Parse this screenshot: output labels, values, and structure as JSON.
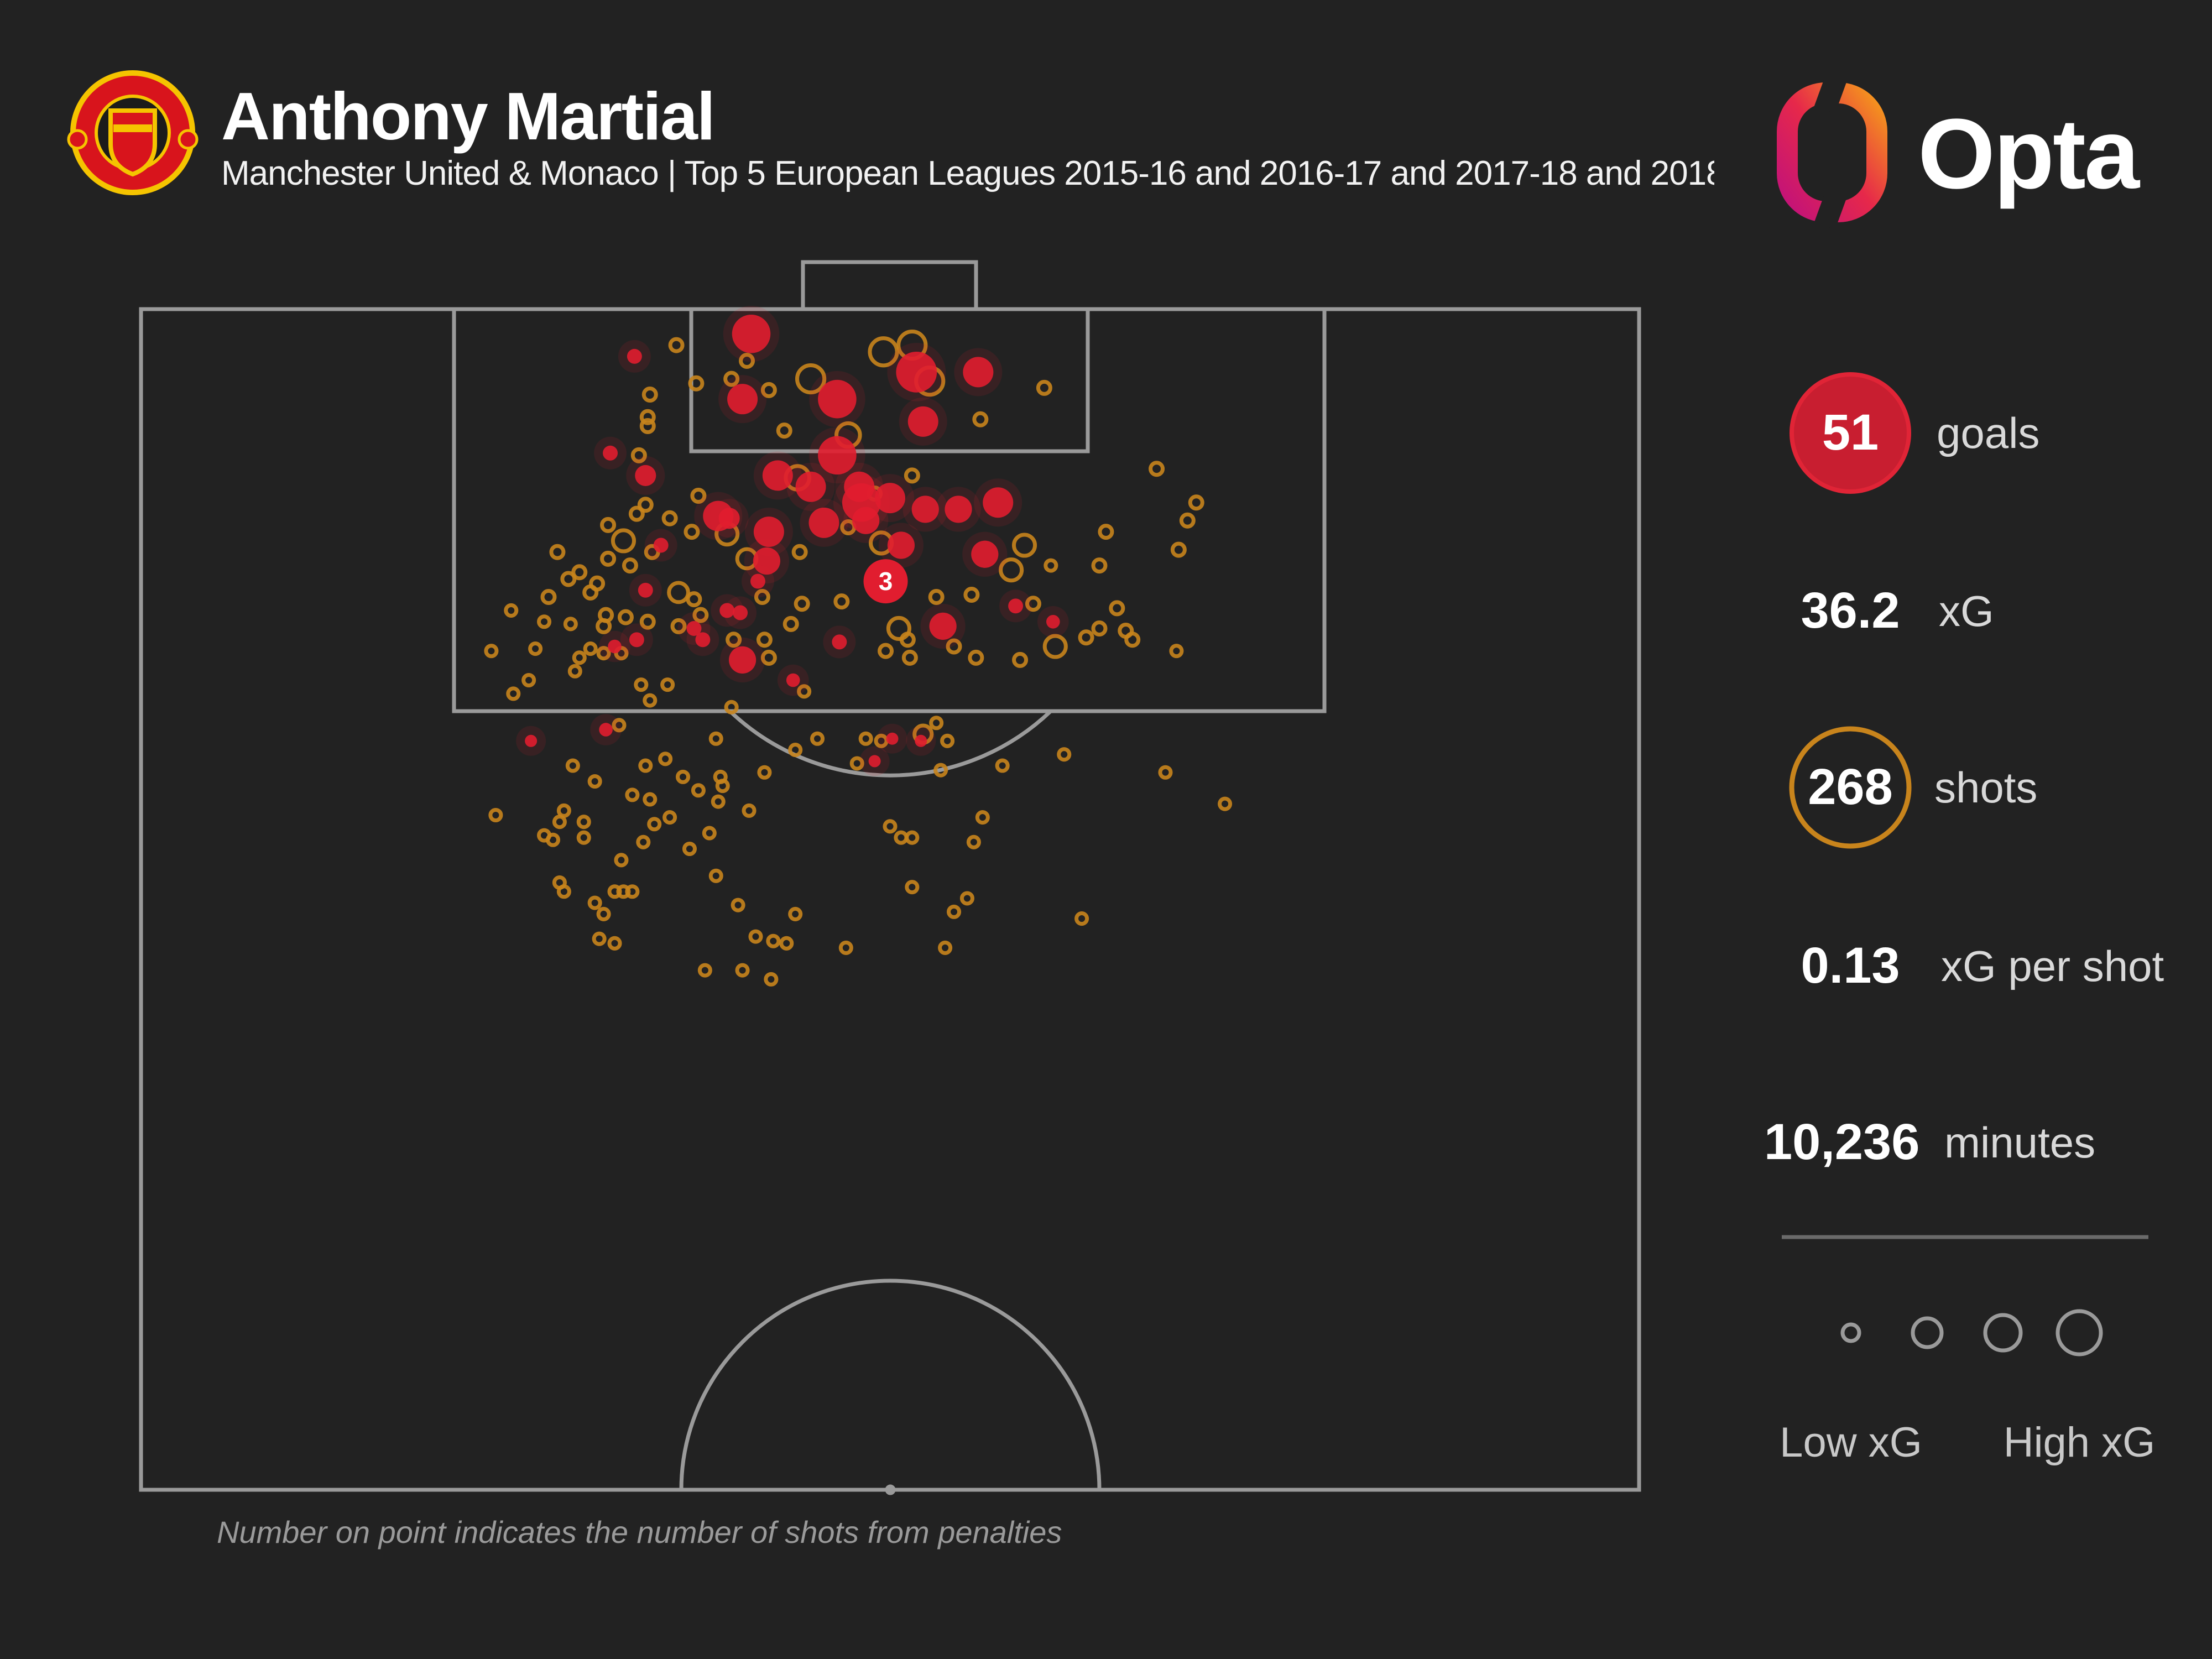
{
  "header": {
    "title": "Anthony Martial",
    "subtitle": "Manchester United & Monaco | Top 5 European Leagues 2015-16 and 2016-17 and 2017-18 and 2018",
    "club_crest": "manchester-united-crest",
    "brand_logo_text": "Opta"
  },
  "stats": {
    "goals_value": "51",
    "goals_label": "goals",
    "xg_value": "36.2",
    "xg_label": "xG",
    "shots_value": "268",
    "shots_label": "shots",
    "xg_per_shot_value": "0.13",
    "xg_per_shot_label": "xG per shot",
    "minutes_value": "10,236",
    "minutes_label": "minutes"
  },
  "legend": {
    "low_label": "Low xG",
    "high_label": "High xG",
    "sizes_xg": [
      0.03,
      0.15,
      0.25,
      0.4
    ]
  },
  "footnote": "Number on point indicates the number of shots from penalties",
  "colors": {
    "background": "#222222",
    "goal": "#e11d2f",
    "shot": "#c8841c",
    "pitch_lines": "#9a9a9a",
    "text": "#ffffff"
  },
  "chart_data": {
    "type": "scatter",
    "title": "",
    "xlabel": "",
    "ylabel": "",
    "xlim": [
      0,
      68
    ],
    "ylim": [
      0,
      52.5
    ],
    "grid": false,
    "penalty": {
      "x": 33.8,
      "y": 12.1,
      "count": "3",
      "goal": true
    },
    "goals": [
      {
        "x": 22.4,
        "y": 2.1,
        "xg": 0.06
      },
      {
        "x": 27.7,
        "y": 1.1,
        "xg": 0.4
      },
      {
        "x": 27.3,
        "y": 4.0,
        "xg": 0.25
      },
      {
        "x": 31.6,
        "y": 4.0,
        "xg": 0.4
      },
      {
        "x": 35.5,
        "y": 5.0,
        "xg": 0.25
      },
      {
        "x": 38.0,
        "y": 2.8,
        "xg": 0.25
      },
      {
        "x": 35.2,
        "y": 2.8,
        "xg": 0.45
      },
      {
        "x": 21.3,
        "y": 6.4,
        "xg": 0.06
      },
      {
        "x": 22.9,
        "y": 7.4,
        "xg": 0.12
      },
      {
        "x": 31.6,
        "y": 6.5,
        "xg": 0.4
      },
      {
        "x": 28.9,
        "y": 7.4,
        "xg": 0.25
      },
      {
        "x": 30.4,
        "y": 7.9,
        "xg": 0.25
      },
      {
        "x": 26.2,
        "y": 9.2,
        "xg": 0.25
      },
      {
        "x": 28.5,
        "y": 9.9,
        "xg": 0.25
      },
      {
        "x": 31.0,
        "y": 9.5,
        "xg": 0.25
      },
      {
        "x": 32.7,
        "y": 8.6,
        "xg": 0.4
      },
      {
        "x": 34.0,
        "y": 8.4,
        "xg": 0.25
      },
      {
        "x": 37.1,
        "y": 8.9,
        "xg": 0.2
      },
      {
        "x": 38.9,
        "y": 8.6,
        "xg": 0.25
      },
      {
        "x": 34.5,
        "y": 10.5,
        "xg": 0.2
      },
      {
        "x": 38.3,
        "y": 10.9,
        "xg": 0.2
      },
      {
        "x": 28.4,
        "y": 11.2,
        "xg": 0.2
      },
      {
        "x": 23.6,
        "y": 10.5,
        "xg": 0.06
      },
      {
        "x": 22.9,
        "y": 12.5,
        "xg": 0.06
      },
      {
        "x": 26.6,
        "y": 13.4,
        "xg": 0.06
      },
      {
        "x": 27.2,
        "y": 13.5,
        "xg": 0.06
      },
      {
        "x": 25.1,
        "y": 14.2,
        "xg": 0.06
      },
      {
        "x": 25.5,
        "y": 14.7,
        "xg": 0.06
      },
      {
        "x": 22.5,
        "y": 14.7,
        "xg": 0.06
      },
      {
        "x": 21.5,
        "y": 15.0,
        "xg": 0.05
      },
      {
        "x": 27.3,
        "y": 15.6,
        "xg": 0.2
      },
      {
        "x": 36.4,
        "y": 14.1,
        "xg": 0.2
      },
      {
        "x": 39.7,
        "y": 13.2,
        "xg": 0.06
      },
      {
        "x": 41.4,
        "y": 13.9,
        "xg": 0.05
      },
      {
        "x": 31.7,
        "y": 14.8,
        "xg": 0.06
      },
      {
        "x": 29.6,
        "y": 16.5,
        "xg": 0.05
      },
      {
        "x": 17.7,
        "y": 19.2,
        "xg": 0.04
      },
      {
        "x": 21.1,
        "y": 18.7,
        "xg": 0.05
      },
      {
        "x": 34.1,
        "y": 19.1,
        "xg": 0.04
      },
      {
        "x": 35.4,
        "y": 19.2,
        "xg": 0.04
      },
      {
        "x": 33.3,
        "y": 20.1,
        "xg": 0.04
      },
      {
        "x": 32.9,
        "y": 9.4,
        "xg": 0.2
      },
      {
        "x": 28.0,
        "y": 12.1,
        "xg": 0.06
      },
      {
        "x": 32.6,
        "y": 7.9,
        "xg": 0.25
      },
      {
        "x": 35.6,
        "y": 8.9,
        "xg": 0.2
      },
      {
        "x": 26.7,
        "y": 9.3,
        "xg": 0.12
      }
    ],
    "shots": [
      {
        "x": 24.3,
        "y": 1.6,
        "xg": 0.04
      },
      {
        "x": 23.1,
        "y": 3.8,
        "xg": 0.04
      },
      {
        "x": 23.0,
        "y": 4.8,
        "xg": 0.04
      },
      {
        "x": 23.0,
        "y": 5.2,
        "xg": 0.04
      },
      {
        "x": 25.2,
        "y": 3.3,
        "xg": 0.04
      },
      {
        "x": 26.8,
        "y": 3.1,
        "xg": 0.04
      },
      {
        "x": 27.5,
        "y": 2.3,
        "xg": 0.04
      },
      {
        "x": 28.5,
        "y": 3.6,
        "xg": 0.04
      },
      {
        "x": 30.4,
        "y": 3.1,
        "xg": 0.2
      },
      {
        "x": 33.7,
        "y": 1.9,
        "xg": 0.2
      },
      {
        "x": 35.0,
        "y": 1.6,
        "xg": 0.2
      },
      {
        "x": 35.8,
        "y": 3.2,
        "xg": 0.2
      },
      {
        "x": 38.1,
        "y": 4.9,
        "xg": 0.04
      },
      {
        "x": 41.0,
        "y": 3.5,
        "xg": 0.04
      },
      {
        "x": 29.2,
        "y": 5.4,
        "xg": 0.04
      },
      {
        "x": 32.1,
        "y": 5.6,
        "xg": 0.15
      },
      {
        "x": 22.6,
        "y": 6.5,
        "xg": 0.04
      },
      {
        "x": 35.0,
        "y": 7.4,
        "xg": 0.04
      },
      {
        "x": 46.1,
        "y": 7.1,
        "xg": 0.04
      },
      {
        "x": 47.9,
        "y": 8.6,
        "xg": 0.04
      },
      {
        "x": 47.5,
        "y": 9.4,
        "xg": 0.04
      },
      {
        "x": 47.1,
        "y": 10.7,
        "xg": 0.04
      },
      {
        "x": 43.8,
        "y": 9.9,
        "xg": 0.04
      },
      {
        "x": 25.3,
        "y": 8.3,
        "xg": 0.04
      },
      {
        "x": 22.9,
        "y": 8.7,
        "xg": 0.04
      },
      {
        "x": 22.5,
        "y": 9.1,
        "xg": 0.04
      },
      {
        "x": 24.0,
        "y": 9.3,
        "xg": 0.04
      },
      {
        "x": 21.2,
        "y": 9.6,
        "xg": 0.04
      },
      {
        "x": 21.9,
        "y": 10.3,
        "xg": 0.12
      },
      {
        "x": 25.0,
        "y": 9.9,
        "xg": 0.04
      },
      {
        "x": 26.6,
        "y": 10.0,
        "xg": 0.12
      },
      {
        "x": 29.8,
        "y": 7.5,
        "xg": 0.15
      },
      {
        "x": 33.3,
        "y": 8.2,
        "xg": 0.04
      },
      {
        "x": 32.1,
        "y": 9.7,
        "xg": 0.04
      },
      {
        "x": 33.6,
        "y": 10.4,
        "xg": 0.12
      },
      {
        "x": 40.1,
        "y": 10.5,
        "xg": 0.12
      },
      {
        "x": 39.5,
        "y": 11.6,
        "xg": 0.12
      },
      {
        "x": 41.3,
        "y": 11.4,
        "xg": 0.03
      },
      {
        "x": 43.5,
        "y": 11.4,
        "xg": 0.04
      },
      {
        "x": 18.9,
        "y": 10.8,
        "xg": 0.04
      },
      {
        "x": 19.9,
        "y": 11.7,
        "xg": 0.04
      },
      {
        "x": 19.4,
        "y": 12.0,
        "xg": 0.04
      },
      {
        "x": 20.7,
        "y": 12.2,
        "xg": 0.04
      },
      {
        "x": 21.2,
        "y": 11.1,
        "xg": 0.04
      },
      {
        "x": 22.2,
        "y": 11.4,
        "xg": 0.04
      },
      {
        "x": 23.2,
        "y": 10.8,
        "xg": 0.04
      },
      {
        "x": 24.4,
        "y": 12.6,
        "xg": 0.1
      },
      {
        "x": 25.1,
        "y": 12.9,
        "xg": 0.04
      },
      {
        "x": 27.5,
        "y": 11.1,
        "xg": 0.1
      },
      {
        "x": 28.2,
        "y": 12.8,
        "xg": 0.04
      },
      {
        "x": 30.0,
        "y": 13.1,
        "xg": 0.04
      },
      {
        "x": 31.8,
        "y": 13.0,
        "xg": 0.04
      },
      {
        "x": 29.9,
        "y": 10.8,
        "xg": 0.04
      },
      {
        "x": 18.5,
        "y": 12.8,
        "xg": 0.04
      },
      {
        "x": 20.4,
        "y": 12.6,
        "xg": 0.04
      },
      {
        "x": 21.1,
        "y": 13.6,
        "xg": 0.04
      },
      {
        "x": 22.0,
        "y": 13.7,
        "xg": 0.04
      },
      {
        "x": 21.0,
        "y": 14.1,
        "xg": 0.04
      },
      {
        "x": 23.0,
        "y": 13.9,
        "xg": 0.04
      },
      {
        "x": 24.4,
        "y": 14.1,
        "xg": 0.04
      },
      {
        "x": 25.4,
        "y": 13.6,
        "xg": 0.04
      },
      {
        "x": 29.5,
        "y": 14.0,
        "xg": 0.04
      },
      {
        "x": 34.4,
        "y": 14.2,
        "xg": 0.12
      },
      {
        "x": 36.1,
        "y": 12.8,
        "xg": 0.04
      },
      {
        "x": 37.7,
        "y": 12.7,
        "xg": 0.04
      },
      {
        "x": 40.5,
        "y": 13.1,
        "xg": 0.04
      },
      {
        "x": 44.3,
        "y": 13.3,
        "xg": 0.04
      },
      {
        "x": 43.5,
        "y": 14.2,
        "xg": 0.04
      },
      {
        "x": 44.7,
        "y": 14.3,
        "xg": 0.04
      },
      {
        "x": 45.0,
        "y": 14.7,
        "xg": 0.04
      },
      {
        "x": 42.9,
        "y": 14.6,
        "xg": 0.04
      },
      {
        "x": 41.5,
        "y": 15.0,
        "xg": 0.12
      },
      {
        "x": 39.9,
        "y": 15.6,
        "xg": 0.04
      },
      {
        "x": 37.9,
        "y": 15.5,
        "xg": 0.04
      },
      {
        "x": 36.9,
        "y": 15.0,
        "xg": 0.04
      },
      {
        "x": 34.8,
        "y": 14.7,
        "xg": 0.04
      },
      {
        "x": 33.8,
        "y": 15.2,
        "xg": 0.04
      },
      {
        "x": 34.9,
        "y": 15.5,
        "xg": 0.04
      },
      {
        "x": 16.8,
        "y": 13.4,
        "xg": 0.03
      },
      {
        "x": 18.3,
        "y": 13.9,
        "xg": 0.03
      },
      {
        "x": 19.5,
        "y": 14.0,
        "xg": 0.03
      },
      {
        "x": 17.9,
        "y": 15.1,
        "xg": 0.03
      },
      {
        "x": 15.9,
        "y": 15.2,
        "xg": 0.03
      },
      {
        "x": 19.7,
        "y": 16.1,
        "xg": 0.03
      },
      {
        "x": 19.9,
        "y": 15.5,
        "xg": 0.03
      },
      {
        "x": 20.4,
        "y": 15.1,
        "xg": 0.03
      },
      {
        "x": 21.0,
        "y": 15.3,
        "xg": 0.03
      },
      {
        "x": 21.8,
        "y": 15.3,
        "xg": 0.03
      },
      {
        "x": 17.6,
        "y": 16.5,
        "xg": 0.03
      },
      {
        "x": 16.9,
        "y": 17.1,
        "xg": 0.03
      },
      {
        "x": 22.7,
        "y": 16.7,
        "xg": 0.03
      },
      {
        "x": 23.9,
        "y": 16.7,
        "xg": 0.03
      },
      {
        "x": 23.1,
        "y": 17.4,
        "xg": 0.03
      },
      {
        "x": 26.9,
        "y": 14.7,
        "xg": 0.04
      },
      {
        "x": 28.3,
        "y": 14.7,
        "xg": 0.04
      },
      {
        "x": 28.5,
        "y": 15.5,
        "xg": 0.04
      },
      {
        "x": 30.1,
        "y": 17.0,
        "xg": 0.03
      },
      {
        "x": 47.0,
        "y": 15.2,
        "xg": 0.03
      },
      {
        "x": 21.7,
        "y": 18.5,
        "xg": 0.03
      },
      {
        "x": 26.1,
        "y": 19.1,
        "xg": 0.03
      },
      {
        "x": 26.8,
        "y": 17.7,
        "xg": 0.03
      },
      {
        "x": 29.7,
        "y": 19.6,
        "xg": 0.03
      },
      {
        "x": 30.7,
        "y": 19.1,
        "xg": 0.03
      },
      {
        "x": 32.9,
        "y": 19.1,
        "xg": 0.03
      },
      {
        "x": 33.6,
        "y": 19.2,
        "xg": 0.03
      },
      {
        "x": 36.1,
        "y": 18.4,
        "xg": 0.03
      },
      {
        "x": 36.6,
        "y": 19.2,
        "xg": 0.03
      },
      {
        "x": 35.5,
        "y": 18.9,
        "xg": 0.08
      },
      {
        "x": 32.5,
        "y": 20.2,
        "xg": 0.03
      },
      {
        "x": 36.3,
        "y": 20.5,
        "xg": 0.03
      },
      {
        "x": 39.1,
        "y": 20.3,
        "xg": 0.03
      },
      {
        "x": 41.9,
        "y": 19.8,
        "xg": 0.03
      },
      {
        "x": 46.5,
        "y": 20.6,
        "xg": 0.03
      },
      {
        "x": 19.6,
        "y": 20.3,
        "xg": 0.03
      },
      {
        "x": 20.6,
        "y": 21.0,
        "xg": 0.03
      },
      {
        "x": 22.9,
        "y": 20.3,
        "xg": 0.03
      },
      {
        "x": 23.8,
        "y": 20.0,
        "xg": 0.03
      },
      {
        "x": 24.6,
        "y": 20.8,
        "xg": 0.03
      },
      {
        "x": 26.3,
        "y": 20.8,
        "xg": 0.03
      },
      {
        "x": 26.4,
        "y": 21.2,
        "xg": 0.03
      },
      {
        "x": 28.3,
        "y": 20.6,
        "xg": 0.03
      },
      {
        "x": 22.3,
        "y": 21.6,
        "xg": 0.03
      },
      {
        "x": 23.1,
        "y": 21.8,
        "xg": 0.03
      },
      {
        "x": 25.3,
        "y": 21.4,
        "xg": 0.03
      },
      {
        "x": 26.2,
        "y": 21.9,
        "xg": 0.03
      },
      {
        "x": 27.6,
        "y": 22.3,
        "xg": 0.03
      },
      {
        "x": 16.1,
        "y": 22.5,
        "xg": 0.03
      },
      {
        "x": 19.2,
        "y": 22.3,
        "xg": 0.03
      },
      {
        "x": 19.0,
        "y": 22.8,
        "xg": 0.03
      },
      {
        "x": 20.1,
        "y": 22.8,
        "xg": 0.03
      },
      {
        "x": 18.3,
        "y": 23.4,
        "xg": 0.03
      },
      {
        "x": 18.7,
        "y": 23.6,
        "xg": 0.03
      },
      {
        "x": 20.1,
        "y": 23.5,
        "xg": 0.03
      },
      {
        "x": 22.8,
        "y": 23.7,
        "xg": 0.03
      },
      {
        "x": 23.3,
        "y": 22.9,
        "xg": 0.03
      },
      {
        "x": 24.0,
        "y": 22.6,
        "xg": 0.03
      },
      {
        "x": 24.9,
        "y": 24.0,
        "xg": 0.03
      },
      {
        "x": 25.8,
        "y": 23.3,
        "xg": 0.03
      },
      {
        "x": 34.0,
        "y": 23.0,
        "xg": 0.03
      },
      {
        "x": 34.5,
        "y": 23.5,
        "xg": 0.03
      },
      {
        "x": 35.0,
        "y": 23.5,
        "xg": 0.03
      },
      {
        "x": 38.2,
        "y": 22.6,
        "xg": 0.03
      },
      {
        "x": 37.8,
        "y": 23.7,
        "xg": 0.03
      },
      {
        "x": 49.2,
        "y": 22.0,
        "xg": 0.03
      },
      {
        "x": 21.8,
        "y": 24.5,
        "xg": 0.03
      },
      {
        "x": 19.0,
        "y": 25.5,
        "xg": 0.03
      },
      {
        "x": 19.2,
        "y": 25.9,
        "xg": 0.03
      },
      {
        "x": 21.5,
        "y": 25.9,
        "xg": 0.03
      },
      {
        "x": 21.9,
        "y": 25.9,
        "xg": 0.03
      },
      {
        "x": 22.3,
        "y": 25.9,
        "xg": 0.03
      },
      {
        "x": 26.1,
        "y": 25.2,
        "xg": 0.03
      },
      {
        "x": 35.0,
        "y": 25.7,
        "xg": 0.03
      },
      {
        "x": 37.5,
        "y": 26.2,
        "xg": 0.03
      },
      {
        "x": 36.9,
        "y": 26.8,
        "xg": 0.03
      },
      {
        "x": 27.1,
        "y": 26.5,
        "xg": 0.03
      },
      {
        "x": 29.7,
        "y": 26.9,
        "xg": 0.03
      },
      {
        "x": 42.7,
        "y": 27.1,
        "xg": 0.03
      },
      {
        "x": 20.6,
        "y": 26.4,
        "xg": 0.03
      },
      {
        "x": 21.0,
        "y": 26.9,
        "xg": 0.03
      },
      {
        "x": 20.8,
        "y": 28.0,
        "xg": 0.03
      },
      {
        "x": 21.5,
        "y": 28.2,
        "xg": 0.03
      },
      {
        "x": 27.9,
        "y": 27.9,
        "xg": 0.03
      },
      {
        "x": 28.7,
        "y": 28.1,
        "xg": 0.03
      },
      {
        "x": 29.3,
        "y": 28.2,
        "xg": 0.03
      },
      {
        "x": 32.0,
        "y": 28.4,
        "xg": 0.03
      },
      {
        "x": 36.5,
        "y": 28.4,
        "xg": 0.03
      },
      {
        "x": 25.6,
        "y": 29.4,
        "xg": 0.03
      },
      {
        "x": 27.3,
        "y": 29.4,
        "xg": 0.03
      },
      {
        "x": 28.6,
        "y": 29.8,
        "xg": 0.03
      }
    ]
  }
}
